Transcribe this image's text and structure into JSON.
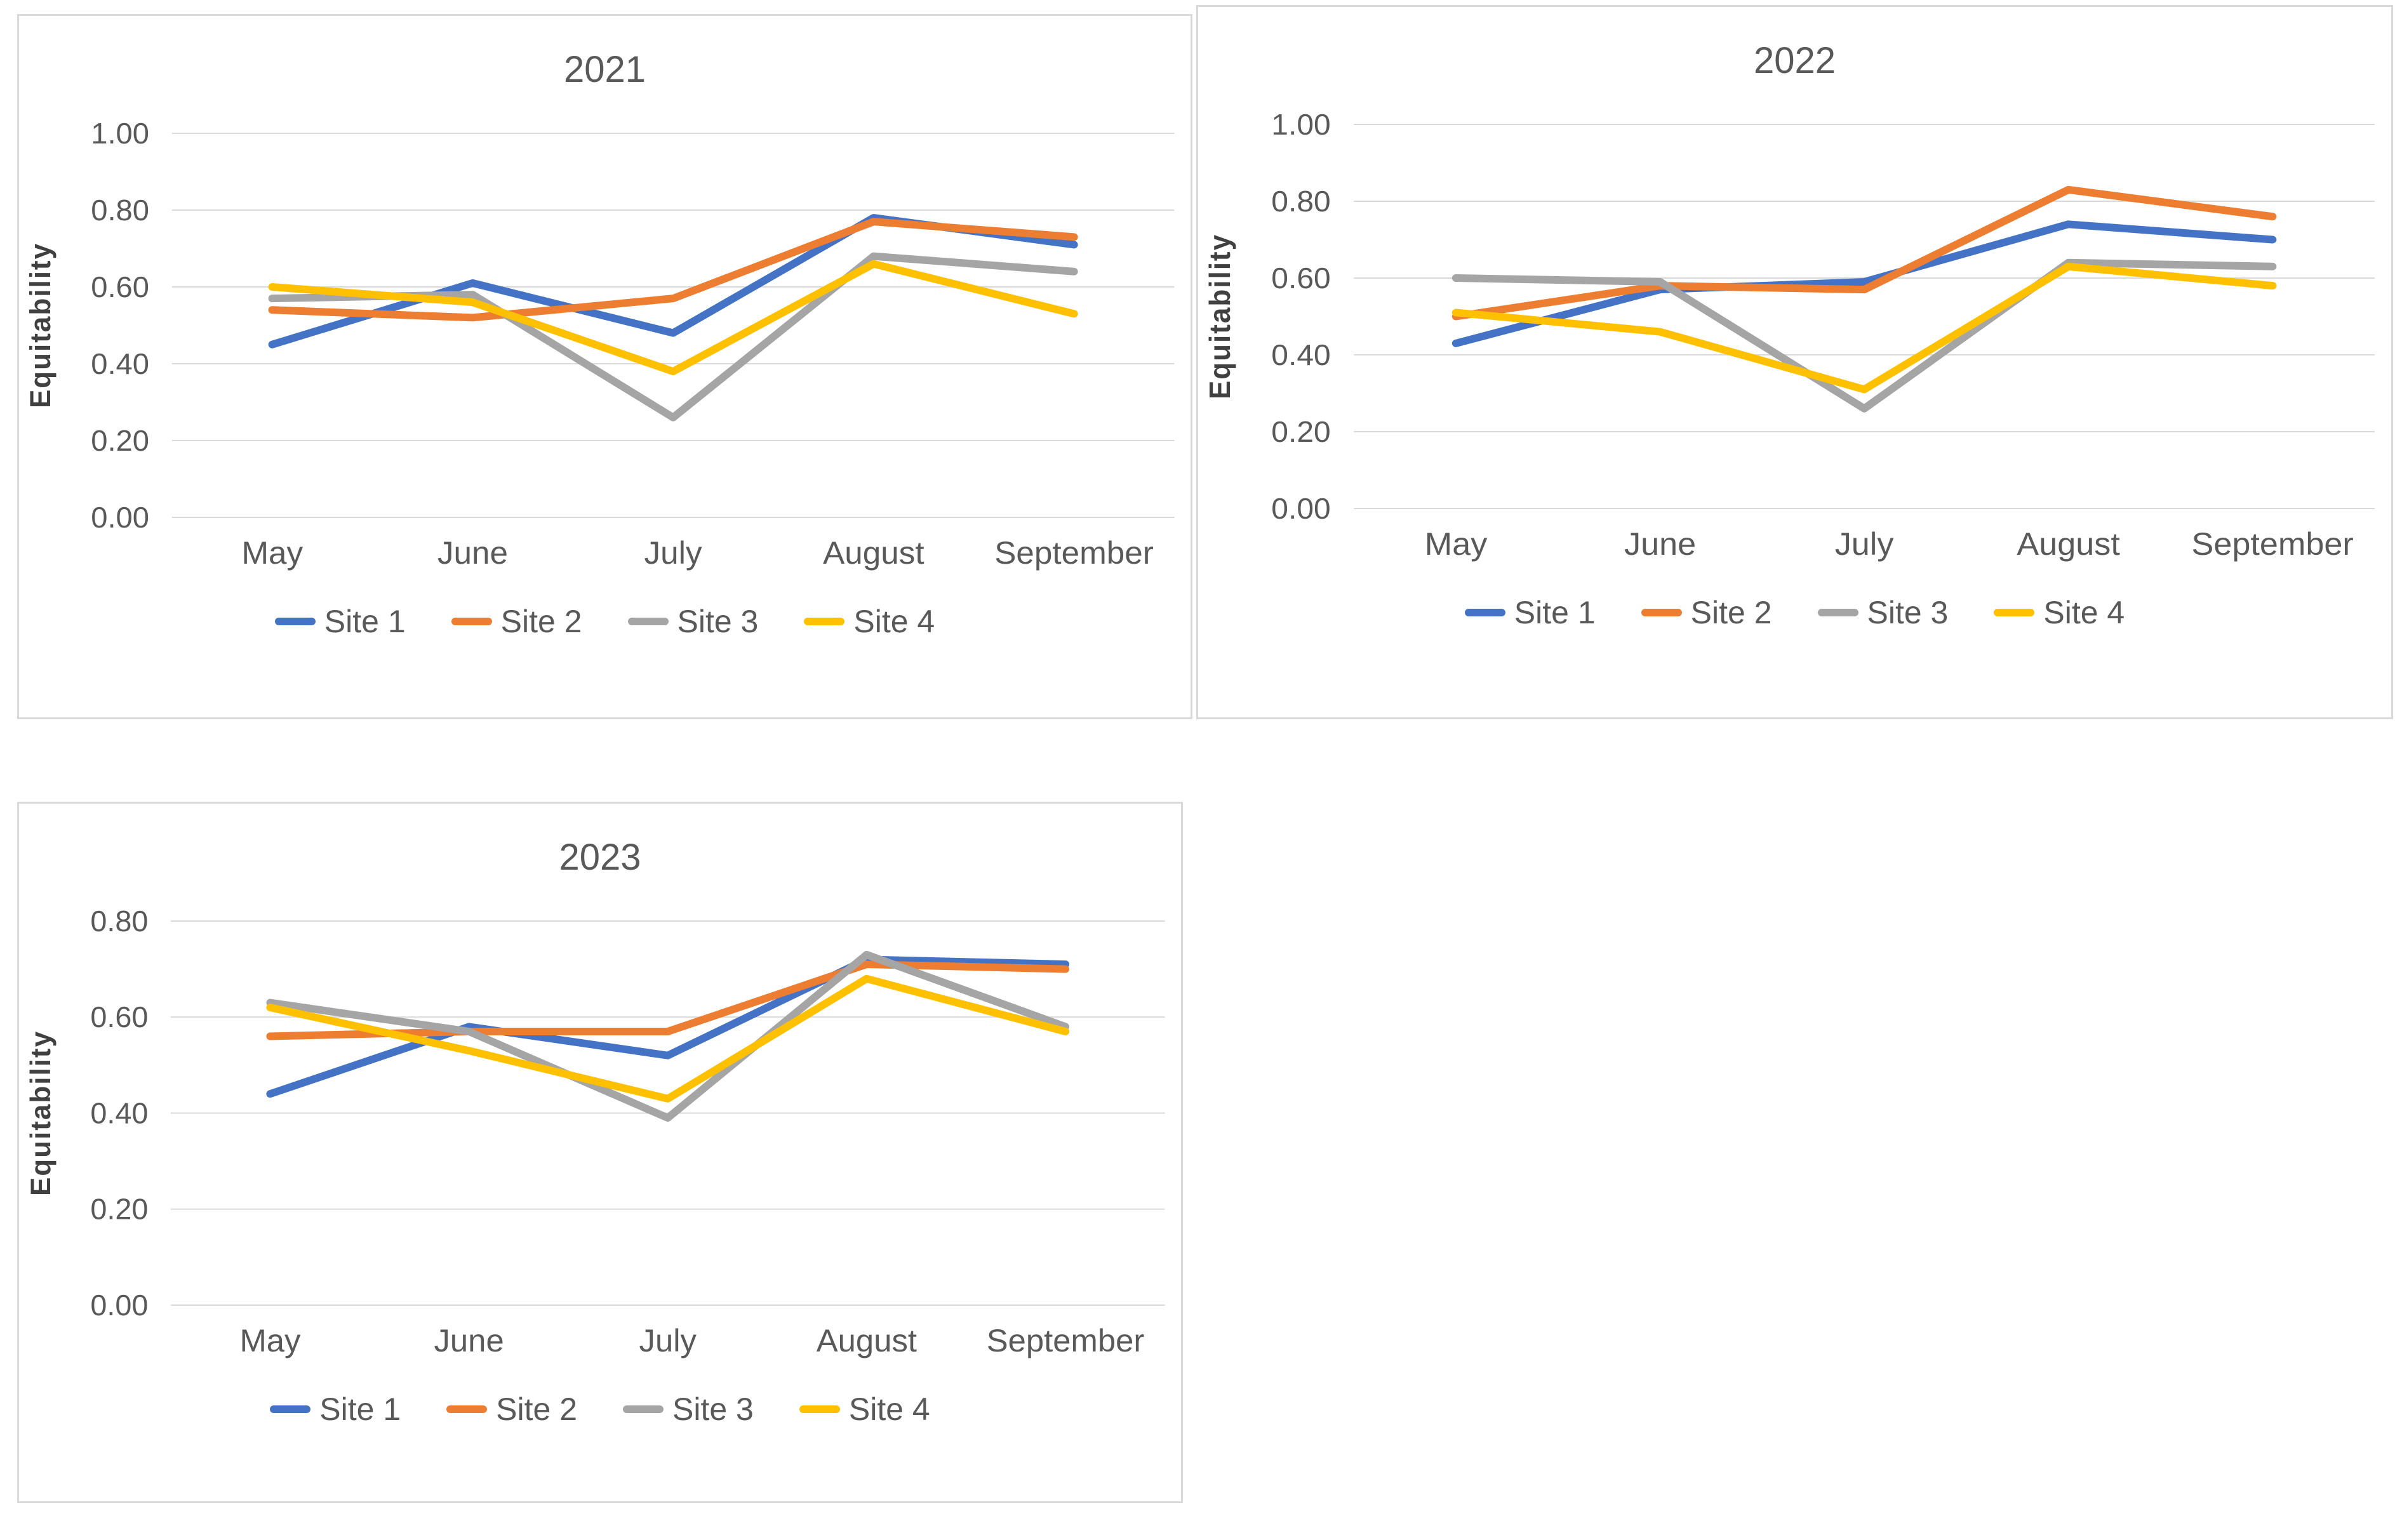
{
  "page": {
    "background": "#ffffff"
  },
  "colors": {
    "series": {
      "Site 1": "#4472C4",
      "Site 2": "#ED7D31",
      "Site 3": "#A5A5A5",
      "Site 4": "#FFC000"
    },
    "gridline": "#D9D9D9",
    "panel_border": "#D9D9D9",
    "axis_text": "#595959",
    "title_text": "#595959",
    "ylabel_text": "#404040"
  },
  "chart_data": [
    {
      "type": "line",
      "title": "2021",
      "xlabel": "",
      "ylabel": "Equitability",
      "categories": [
        "May",
        "June",
        "July",
        "August",
        "September"
      ],
      "ylim": [
        0.0,
        1.0
      ],
      "yticks": [
        1.0,
        0.8,
        0.6,
        0.4,
        0.2,
        0.0
      ],
      "ytick_labels": [
        "1.00",
        "0.80",
        "0.60",
        "0.40",
        "0.20",
        "0.00"
      ],
      "grid": true,
      "legend_position": "bottom",
      "series": [
        {
          "name": "Site 1",
          "values": [
            0.45,
            0.61,
            0.48,
            0.78,
            0.71
          ]
        },
        {
          "name": "Site 2",
          "values": [
            0.54,
            0.52,
            0.57,
            0.77,
            0.73
          ]
        },
        {
          "name": "Site 3",
          "values": [
            0.57,
            0.58,
            0.26,
            0.68,
            0.64
          ]
        },
        {
          "name": "Site 4",
          "values": [
            0.6,
            0.56,
            0.38,
            0.66,
            0.53
          ]
        }
      ]
    },
    {
      "type": "line",
      "title": "2022",
      "xlabel": "",
      "ylabel": "Equitability",
      "categories": [
        "May",
        "June",
        "July",
        "August",
        "September"
      ],
      "ylim": [
        0.0,
        1.0
      ],
      "yticks": [
        1.0,
        0.8,
        0.6,
        0.4,
        0.2,
        0.0
      ],
      "ytick_labels": [
        "1.00",
        "0.80",
        "0.60",
        "0.40",
        "0.20",
        "0.00"
      ],
      "grid": true,
      "legend_position": "bottom",
      "series": [
        {
          "name": "Site 1",
          "values": [
            0.43,
            0.57,
            0.59,
            0.74,
            0.7
          ]
        },
        {
          "name": "Site 2",
          "values": [
            0.5,
            0.58,
            0.57,
            0.83,
            0.76
          ]
        },
        {
          "name": "Site 3",
          "values": [
            0.6,
            0.59,
            0.26,
            0.64,
            0.63
          ]
        },
        {
          "name": "Site 4",
          "values": [
            0.51,
            0.46,
            0.31,
            0.63,
            0.58
          ]
        }
      ]
    },
    {
      "type": "line",
      "title": "2023",
      "xlabel": "",
      "ylabel": "Equitability",
      "categories": [
        "May",
        "June",
        "July",
        "August",
        "September"
      ],
      "ylim": [
        0.0,
        0.8
      ],
      "yticks": [
        0.8,
        0.6,
        0.4,
        0.2,
        0.0
      ],
      "ytick_labels": [
        "0.80",
        "0.60",
        "0.40",
        "0.20",
        "0.00"
      ],
      "grid": true,
      "legend_position": "bottom",
      "series": [
        {
          "name": "Site 1",
          "values": [
            0.44,
            0.58,
            0.52,
            0.72,
            0.71
          ]
        },
        {
          "name": "Site 2",
          "values": [
            0.56,
            0.57,
            0.57,
            0.71,
            0.7
          ]
        },
        {
          "name": "Site 3",
          "values": [
            0.63,
            0.57,
            0.39,
            0.73,
            0.58
          ]
        },
        {
          "name": "Site 4",
          "values": [
            0.62,
            0.53,
            0.43,
            0.68,
            0.57
          ]
        }
      ]
    }
  ]
}
